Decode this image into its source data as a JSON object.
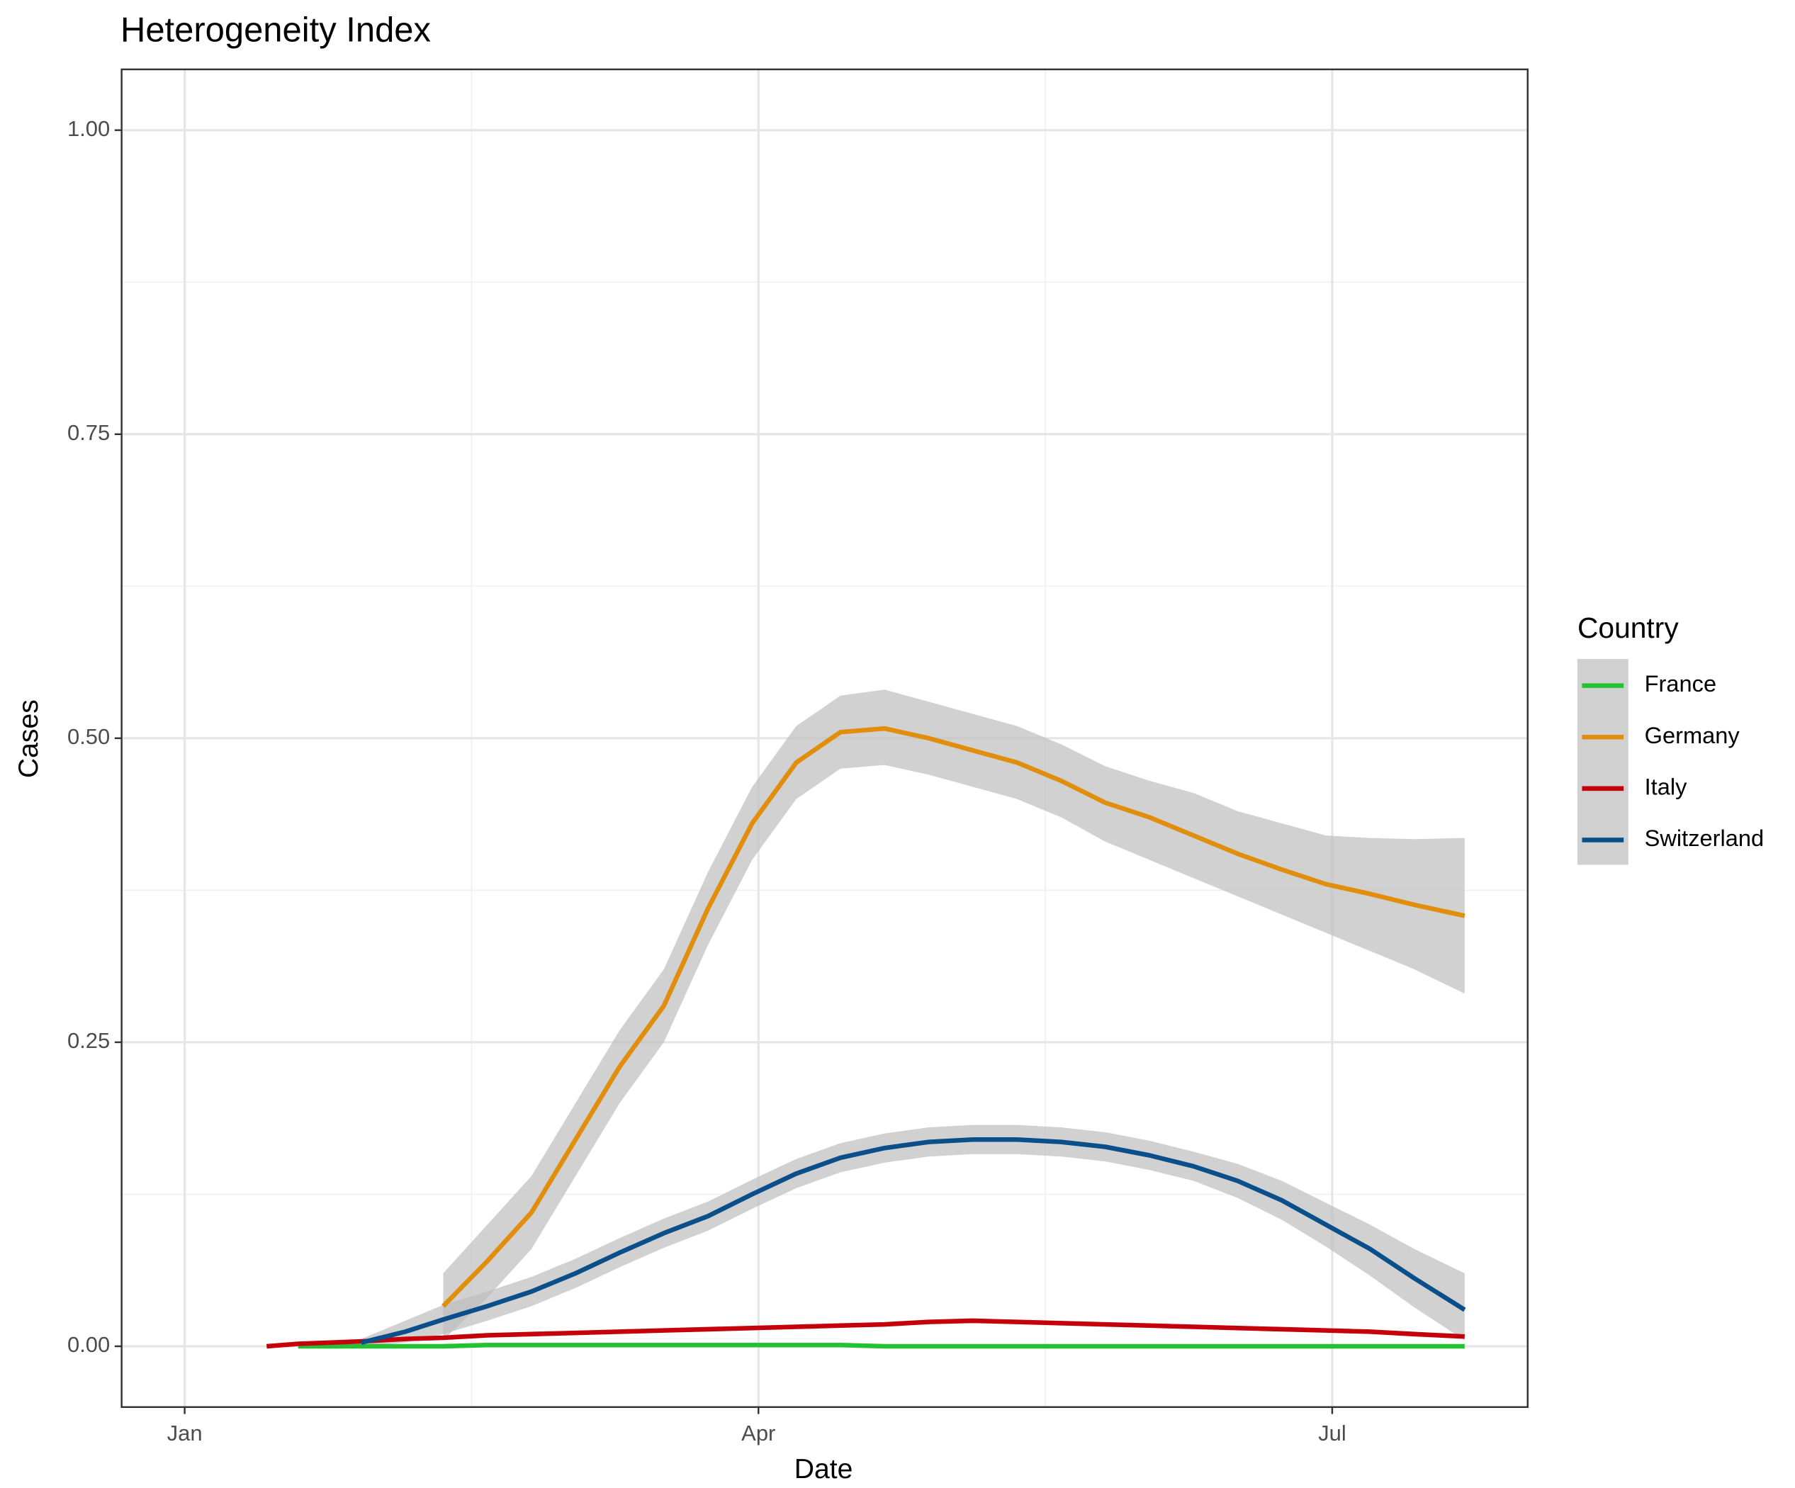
{
  "chart_data": {
    "type": "line",
    "title": "Heterogeneity Index",
    "x_label": "Date",
    "y_label": "Cases",
    "x": [
      13,
      18,
      28,
      35,
      41,
      48,
      55,
      62,
      69,
      76,
      83,
      90,
      97,
      104,
      111,
      118,
      125,
      132,
      139,
      146,
      153,
      160,
      167,
      174,
      181,
      188,
      195,
      203
    ],
    "xlim": [
      -10,
      213
    ],
    "xticks": [
      {
        "value": 0,
        "label": "Jan"
      },
      {
        "value": 91,
        "label": "Apr"
      },
      {
        "value": 182,
        "label": "Jul"
      }
    ],
    "ylim": [
      -0.05,
      1.05
    ],
    "yticks": [
      {
        "value": 0,
        "label": "0.00"
      },
      {
        "value": 0.25,
        "label": "0.25"
      },
      {
        "value": 0.5,
        "label": "0.50"
      },
      {
        "value": 0.75,
        "label": "0.75"
      },
      {
        "value": 1,
        "label": "1.00"
      }
    ],
    "grid": true,
    "legend_title": "Country",
    "legend_position": "right",
    "band_color": "#bdbdbd",
    "series": [
      {
        "name": "France",
        "color": "#22c232",
        "values": [
          null,
          0,
          0,
          0,
          0,
          0.001,
          0.001,
          0.001,
          0.001,
          0.001,
          0.001,
          0.001,
          0.001,
          0.001,
          0,
          0,
          0,
          0,
          0,
          0,
          0,
          0,
          0,
          0,
          0,
          0,
          0,
          0
        ]
      },
      {
        "name": "Germany",
        "color": "#e08e0b",
        "values": [
          null,
          null,
          null,
          null,
          0.033,
          0.07,
          0.11,
          0.17,
          0.23,
          0.28,
          0.36,
          0.43,
          0.48,
          0.505,
          0.508,
          0.5,
          0.49,
          0.48,
          0.465,
          0.447,
          0.435,
          0.42,
          0.405,
          0.392,
          0.38,
          0.372,
          0.363,
          0.354
        ],
        "lower": [
          null,
          null,
          null,
          null,
          0.005,
          0.04,
          0.08,
          0.14,
          0.2,
          0.25,
          0.33,
          0.4,
          0.45,
          0.475,
          0.478,
          0.47,
          0.46,
          0.45,
          0.435,
          0.415,
          0.4,
          0.385,
          0.37,
          0.355,
          0.34,
          0.325,
          0.31,
          0.29
        ],
        "upper": [
          null,
          null,
          null,
          null,
          0.06,
          0.1,
          0.14,
          0.2,
          0.26,
          0.31,
          0.39,
          0.46,
          0.51,
          0.535,
          0.54,
          0.53,
          0.52,
          0.51,
          0.495,
          0.477,
          0.465,
          0.455,
          0.44,
          0.43,
          0.42,
          0.418,
          0.417,
          0.418
        ]
      },
      {
        "name": "Italy",
        "color": "#c4000a",
        "values": [
          0,
          0.002,
          0.004,
          0.006,
          0.007,
          0.009,
          0.01,
          0.011,
          0.012,
          0.013,
          0.014,
          0.015,
          0.016,
          0.017,
          0.018,
          0.02,
          0.021,
          0.02,
          0.019,
          0.018,
          0.017,
          0.016,
          0.015,
          0.014,
          0.013,
          0.012,
          0.01,
          0.008
        ]
      },
      {
        "name": "Switzerland",
        "color": "#0b4f8a",
        "values": [
          null,
          null,
          0.003,
          0.012,
          0.022,
          0.033,
          0.045,
          0.06,
          0.077,
          0.093,
          0.107,
          0.125,
          0.142,
          0.155,
          0.163,
          0.168,
          0.17,
          0.17,
          0.168,
          0.164,
          0.157,
          0.148,
          0.136,
          0.12,
          0.1,
          0.08,
          0.056,
          0.03
        ],
        "lower": [
          null,
          null,
          0,
          0.003,
          0.01,
          0.021,
          0.033,
          0.048,
          0.065,
          0.081,
          0.095,
          0.113,
          0.13,
          0.143,
          0.151,
          0.156,
          0.158,
          0.158,
          0.156,
          0.152,
          0.145,
          0.136,
          0.122,
          0.104,
          0.082,
          0.058,
          0.032,
          0.005
        ],
        "upper": [
          null,
          null,
          0.006,
          0.021,
          0.034,
          0.045,
          0.057,
          0.072,
          0.089,
          0.105,
          0.119,
          0.137,
          0.154,
          0.167,
          0.175,
          0.18,
          0.182,
          0.182,
          0.18,
          0.176,
          0.169,
          0.16,
          0.15,
          0.136,
          0.118,
          0.1,
          0.08,
          0.06
        ]
      }
    ]
  }
}
